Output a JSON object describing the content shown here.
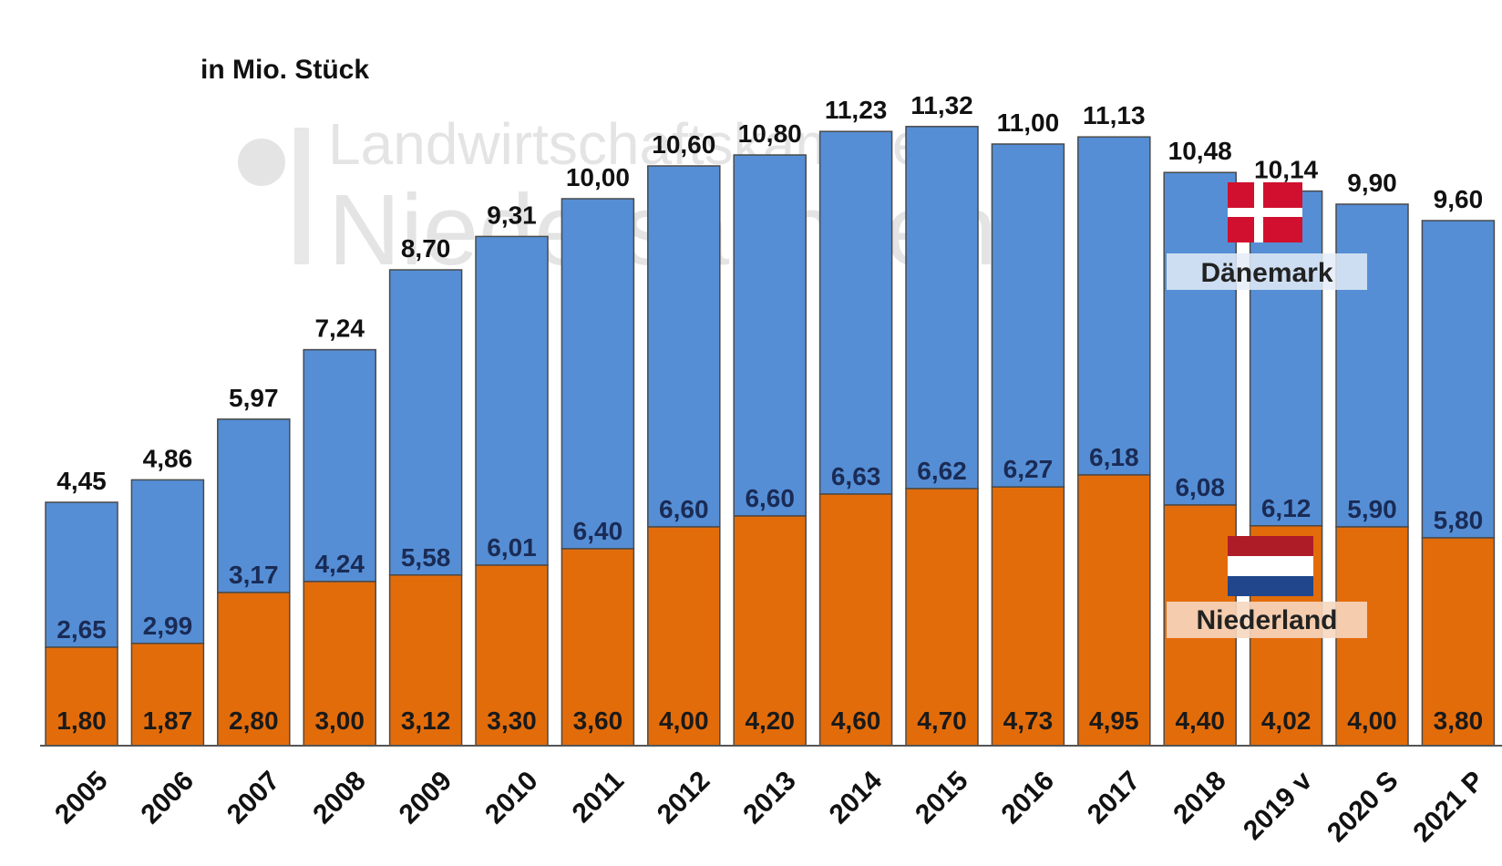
{
  "unit_label": "in Mio. Stück",
  "watermark": {
    "line1": "Landwirtschaftskammer",
    "line2": "Niedersachsen"
  },
  "colors": {
    "niederland": "#e36c0a",
    "daenemark": "#558ed5",
    "bar_border": "#4a4a4a"
  },
  "legend": {
    "daenemark": "Dänemark",
    "niederland": "Niederland"
  },
  "chart_data": {
    "type": "bar",
    "stacked": true,
    "unit": "in Mio. Stück",
    "categories": [
      "2005",
      "2006",
      "2007",
      "2008",
      "2009",
      "2010",
      "2011",
      "2012",
      "2013",
      "2014",
      "2015",
      "2016",
      "2017",
      "2018",
      "2019 v",
      "2020 S",
      "2021 P"
    ],
    "series": [
      {
        "name": "Niederland",
        "values": [
          1.8,
          1.87,
          2.8,
          3.0,
          3.12,
          3.3,
          3.6,
          4.0,
          4.2,
          4.6,
          4.7,
          4.73,
          4.95,
          4.4,
          4.02,
          4.0,
          3.8
        ],
        "labels": [
          "1,80",
          "1,87",
          "2,80",
          "3,00",
          "3,12",
          "3,30",
          "3,60",
          "4,00",
          "4,20",
          "4,60",
          "4,70",
          "4,73",
          "4,95",
          "4,40",
          "4,02",
          "4,00",
          "3,80"
        ]
      },
      {
        "name": "Dänemark",
        "values": [
          2.65,
          2.99,
          3.17,
          4.24,
          5.58,
          6.01,
          6.4,
          6.6,
          6.6,
          6.63,
          6.62,
          6.27,
          6.18,
          6.08,
          6.12,
          5.9,
          5.8
        ],
        "labels": [
          "2,65",
          "2,99",
          "3,17",
          "4,24",
          "5,58",
          "6,01",
          "6,40",
          "6,60",
          "6,60",
          "6,63",
          "6,62",
          "6,27",
          "6,18",
          "6,08",
          "6,12",
          "5,90",
          "5,80"
        ]
      }
    ],
    "totals": [
      4.45,
      4.86,
      5.97,
      7.24,
      8.7,
      9.31,
      10.0,
      10.6,
      10.8,
      11.23,
      11.32,
      11.0,
      11.13,
      10.48,
      10.14,
      9.9,
      9.6
    ],
    "total_labels": [
      "4,45",
      "4,86",
      "5,97",
      "7,24",
      "8,70",
      "9,31",
      "10,00",
      "10,60",
      "10,80",
      "11,23",
      "11,32",
      "11,00",
      "11,13",
      "10,48",
      "10,14",
      "9,90",
      "9,60"
    ],
    "ylim": [
      0,
      11.5
    ],
    "grid": false,
    "xlabel": "",
    "ylabel": ""
  }
}
